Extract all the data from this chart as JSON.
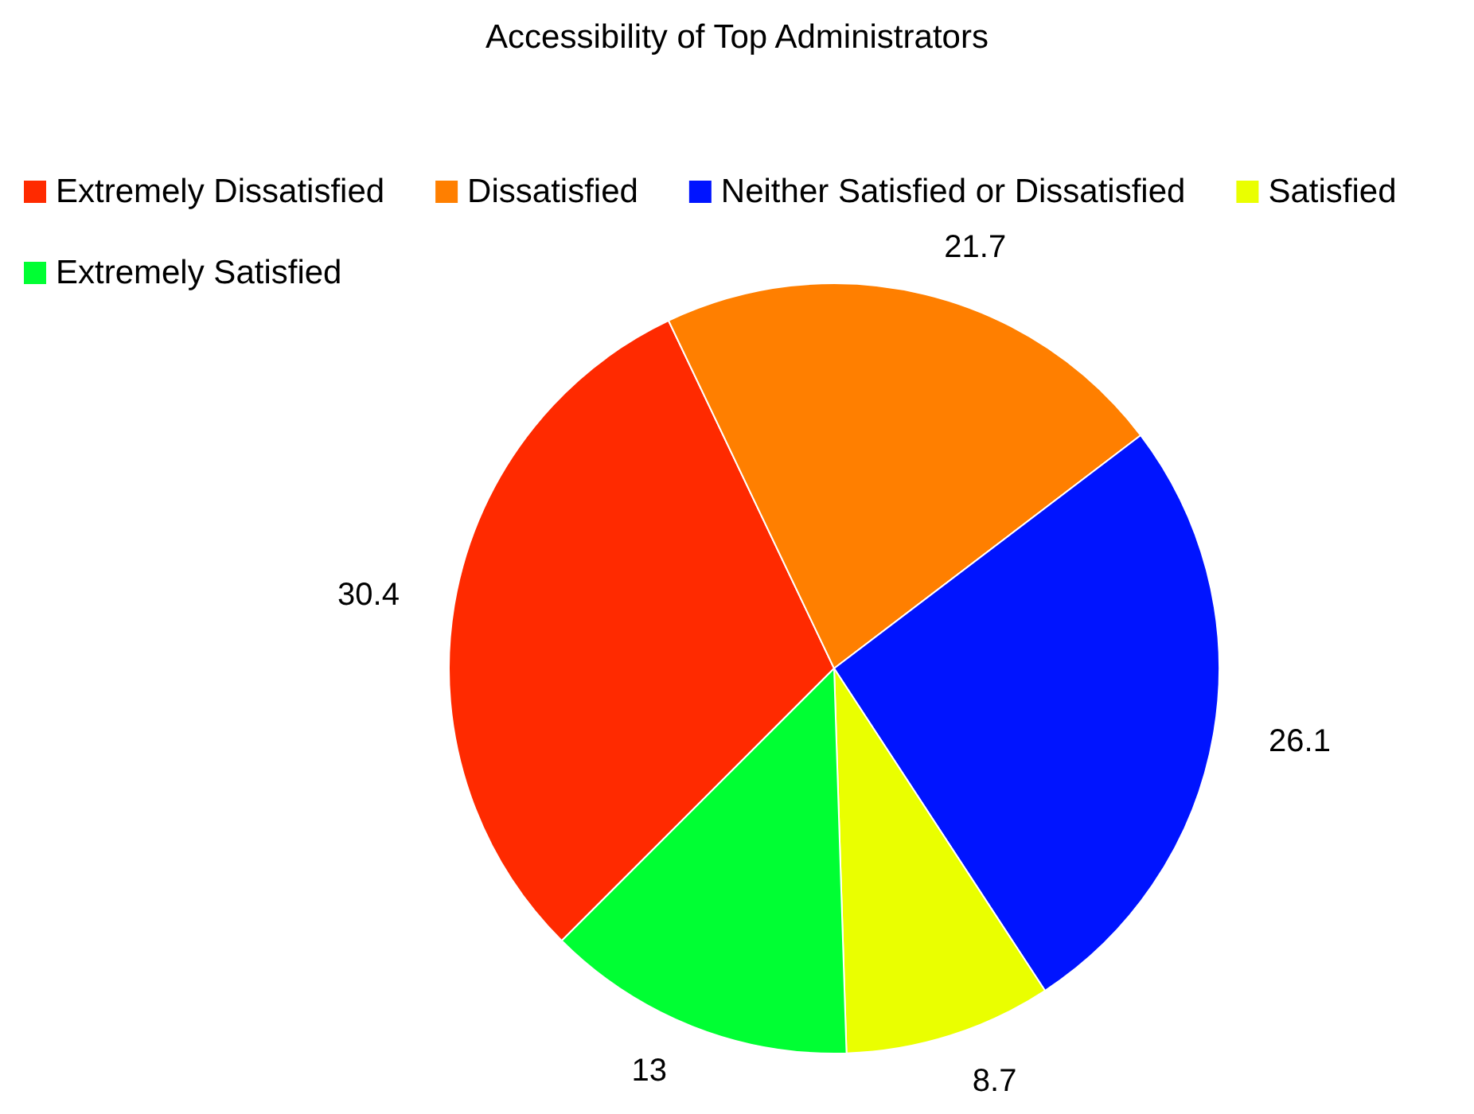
{
  "chart_data": {
    "type": "pie",
    "title": "Accessibility of Top Administrators",
    "categories": [
      "Extremely Dissatisfied",
      "Dissatisfied",
      "Neither Satisfied or Dissatisfied",
      "Satisfied",
      "Extremely Satisfied"
    ],
    "values": [
      30.4,
      21.7,
      26.1,
      8.7,
      13
    ],
    "colors": [
      "#ff2a00",
      "#ff7f00",
      "#0014ff",
      "#eaff00",
      "#00ff33"
    ],
    "legend": "top left",
    "data_labels": true
  }
}
